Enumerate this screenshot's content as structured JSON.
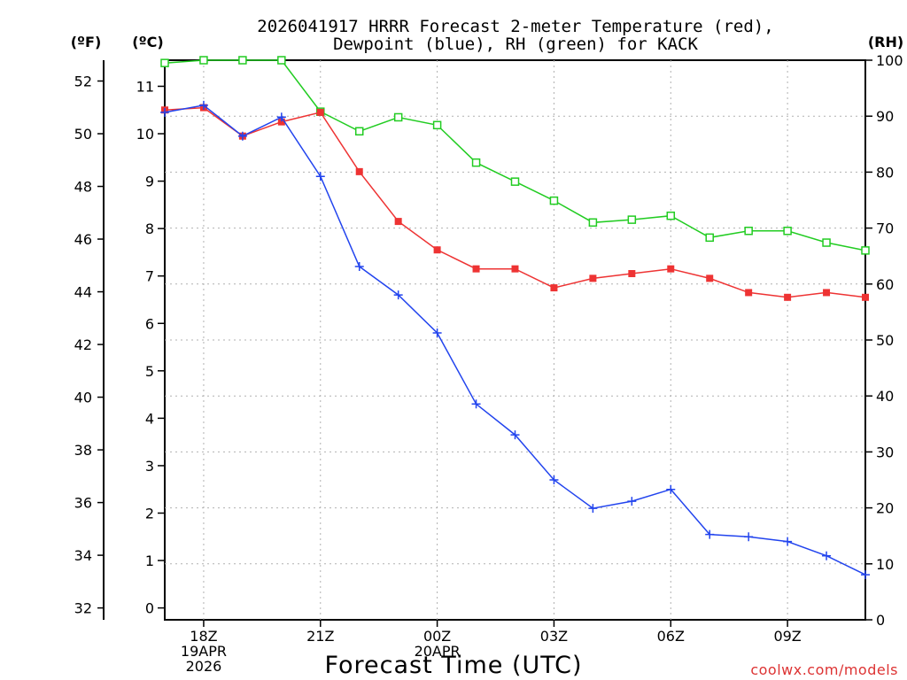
{
  "header": {
    "title_line1": "2026041917 HRRR Forecast 2-meter Temperature (red),",
    "title_line2": "Dewpoint (blue), RH (green) for KACK"
  },
  "axes": {
    "f_unit": "(ºF)",
    "c_unit": "(ºC)",
    "rh_unit": "(RH)",
    "xlabel": "Forecast Time (UTC)",
    "credit": "coolwx.com/models"
  },
  "colors": {
    "temperature": "#ee3333",
    "dewpoint": "#2244ee",
    "rh": "#22cc22",
    "grid": "#b0b0b0",
    "credit": "#dd3333"
  },
  "chart_data": {
    "type": "line",
    "title": "2026041917 HRRR Forecast 2-meter Temperature (red), Dewpoint (blue), RH (green) for KACK",
    "xlabel": "Forecast Time (UTC)",
    "x_hours": [
      17,
      18,
      19,
      20,
      21,
      22,
      23,
      24,
      25,
      26,
      27,
      28,
      29,
      30,
      31,
      32,
      33,
      34,
      35
    ],
    "xlim": [
      17,
      35
    ],
    "x_ticks": [
      {
        "hour": 18,
        "lines": [
          "18Z",
          "19APR",
          "2026"
        ]
      },
      {
        "hour": 21,
        "lines": [
          "21Z"
        ]
      },
      {
        "hour": 24,
        "lines": [
          "00Z",
          "20APR"
        ]
      },
      {
        "hour": 27,
        "lines": [
          "03Z"
        ]
      },
      {
        "hour": 30,
        "lines": [
          "06Z"
        ]
      },
      {
        "hour": 33,
        "lines": [
          "09Z"
        ]
      }
    ],
    "c_axis": {
      "label": "(ºC)",
      "range": [
        -0.25,
        11.55
      ],
      "ticks": [
        0,
        1,
        2,
        3,
        4,
        5,
        6,
        7,
        8,
        9,
        10,
        11
      ]
    },
    "f_axis": {
      "label": "(ºF)",
      "ticks": [
        32,
        34,
        36,
        38,
        40,
        42,
        44,
        46,
        48,
        50,
        52
      ]
    },
    "rh_axis": {
      "label": "(RH)",
      "range": [
        0,
        100
      ],
      "ticks": [
        0,
        10,
        20,
        30,
        40,
        50,
        60,
        70,
        80,
        90,
        100
      ]
    },
    "grid": true,
    "series": [
      {
        "name": "Temperature",
        "axis": "C",
        "marker": "filled-square",
        "color": "#ee3333",
        "values": [
          10.5,
          10.55,
          9.95,
          10.25,
          10.45,
          9.2,
          8.15,
          7.55,
          7.15,
          7.15,
          6.75,
          6.95,
          7.05,
          7.15,
          6.95,
          6.65,
          6.55,
          6.65,
          6.55
        ]
      },
      {
        "name": "Dewpoint",
        "axis": "C",
        "marker": "plus",
        "color": "#2244ee",
        "values": [
          10.45,
          10.6,
          9.95,
          10.35,
          9.1,
          7.2,
          6.6,
          5.8,
          4.3,
          3.65,
          2.7,
          2.1,
          2.25,
          2.5,
          1.55,
          1.5,
          1.4,
          1.1,
          0.7
        ]
      },
      {
        "name": "RH",
        "axis": "RH",
        "marker": "open-square",
        "color": "#22cc22",
        "values": [
          99.5,
          100,
          100,
          100,
          90.8,
          87.3,
          89.8,
          88.4,
          81.7,
          78.3,
          74.9,
          71,
          71.5,
          72.2,
          68.3,
          69.5,
          69.5,
          67.4,
          66
        ]
      }
    ]
  }
}
